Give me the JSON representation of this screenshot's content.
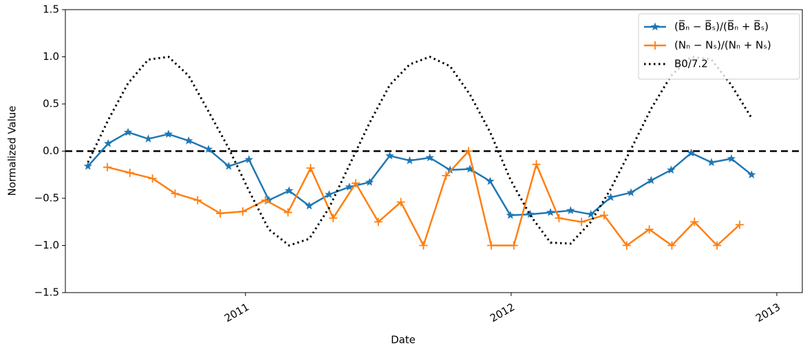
{
  "chart_data": {
    "type": "line",
    "xlabel": "Date",
    "ylabel": "Normalized Value",
    "xlim": [
      2010.322,
      2013.096
    ],
    "xticks": [
      2011,
      2012,
      2013
    ],
    "ylim": [
      -1.5,
      1.5
    ],
    "yticks": [
      {
        "value": -1.5,
        "label": "−1.5"
      },
      {
        "value": -1.0,
        "label": "−1.0"
      },
      {
        "value": -0.5,
        "label": "−0.5"
      },
      {
        "value": 0,
        "label": "0.0"
      },
      0.5,
      {
        "value": 1.0,
        "label": "1.0"
      },
      1.5
    ],
    "axhline": 0,
    "legend": "upper right",
    "series": [
      {
        "name": "(B̅ₙ − B̅ₛ)/(B̅ₙ + B̅ₛ)",
        "color": "#1f77b4",
        "marker": "star",
        "linestyle": "solid",
        "x": [
          2010.407,
          2010.483,
          2010.558,
          2010.634,
          2010.71,
          2010.786,
          2010.861,
          2010.937,
          2011.013,
          2011.088,
          2011.164,
          2011.24,
          2011.315,
          2011.391,
          2011.467,
          2011.543,
          2011.618,
          2011.694,
          2011.77,
          2011.845,
          2011.921,
          2011.997,
          2012.072,
          2012.148,
          2012.224,
          2012.3,
          2012.375,
          2012.451,
          2012.527,
          2012.602,
          2012.678,
          2012.754,
          2012.829,
          2012.905
        ],
        "values": [
          -0.16,
          0.08,
          0.2,
          0.13,
          0.18,
          0.11,
          0.02,
          -0.16,
          -0.09,
          -0.52,
          -0.42,
          -0.58,
          -0.46,
          -0.38,
          -0.33,
          -0.05,
          -0.1,
          -0.07,
          -0.2,
          -0.19,
          -0.32,
          -0.68,
          -0.67,
          -0.65,
          -0.63,
          -0.67,
          -0.49,
          -0.44,
          -0.31,
          -0.2,
          -0.02,
          -0.12,
          -0.08,
          -0.25
        ]
      },
      {
        "name": "(Nₙ − Nₛ)/(Nₙ + Nₛ)",
        "color": "#ff7f0e",
        "marker": "plus",
        "linestyle": "solid",
        "x": [
          2010.48,
          2010.565,
          2010.65,
          2010.735,
          2010.82,
          2010.905,
          2010.99,
          2011.075,
          2011.16,
          2011.245,
          2011.33,
          2011.415,
          2011.5,
          2011.585,
          2011.67,
          2011.755,
          2011.84,
          2011.925,
          2012.01,
          2012.095,
          2012.18,
          2012.265,
          2012.35,
          2012.435,
          2012.52,
          2012.605,
          2012.69,
          2012.775,
          2012.86
        ],
        "values": [
          -0.17,
          -0.23,
          -0.29,
          -0.45,
          -0.52,
          -0.66,
          -0.64,
          -0.52,
          -0.65,
          -0.18,
          -0.71,
          -0.34,
          -0.75,
          -0.54,
          -1.0,
          -0.26,
          0.0,
          -1.0,
          -1.0,
          -0.14,
          -0.71,
          -0.75,
          -0.68,
          -1.0,
          -0.83,
          -1.0,
          -0.75,
          -1.0,
          -0.78
        ]
      },
      {
        "name": "B0/7.2",
        "color": "#000000",
        "marker": "none",
        "linestyle": "dotted",
        "x": [
          2010.407,
          2010.483,
          2010.558,
          2010.634,
          2010.71,
          2010.786,
          2010.861,
          2010.937,
          2011.013,
          2011.088,
          2011.164,
          2011.24,
          2011.315,
          2011.391,
          2011.467,
          2011.543,
          2011.618,
          2011.694,
          2011.77,
          2011.845,
          2011.921,
          2011.997,
          2012.072,
          2012.148,
          2012.224,
          2012.3,
          2012.375,
          2012.451,
          2012.527,
          2012.602,
          2012.678,
          2012.754,
          2012.829,
          2012.905
        ],
        "values": [
          -0.12,
          0.33,
          0.72,
          0.97,
          1.0,
          0.8,
          0.42,
          0.03,
          -0.42,
          -0.83,
          -1.0,
          -0.93,
          -0.6,
          -0.15,
          0.3,
          0.7,
          0.92,
          1.0,
          0.9,
          0.6,
          0.2,
          -0.3,
          -0.68,
          -0.97,
          -0.98,
          -0.75,
          -0.4,
          0.02,
          0.45,
          0.8,
          1.0,
          0.97,
          0.7,
          0.35
        ]
      }
    ]
  }
}
